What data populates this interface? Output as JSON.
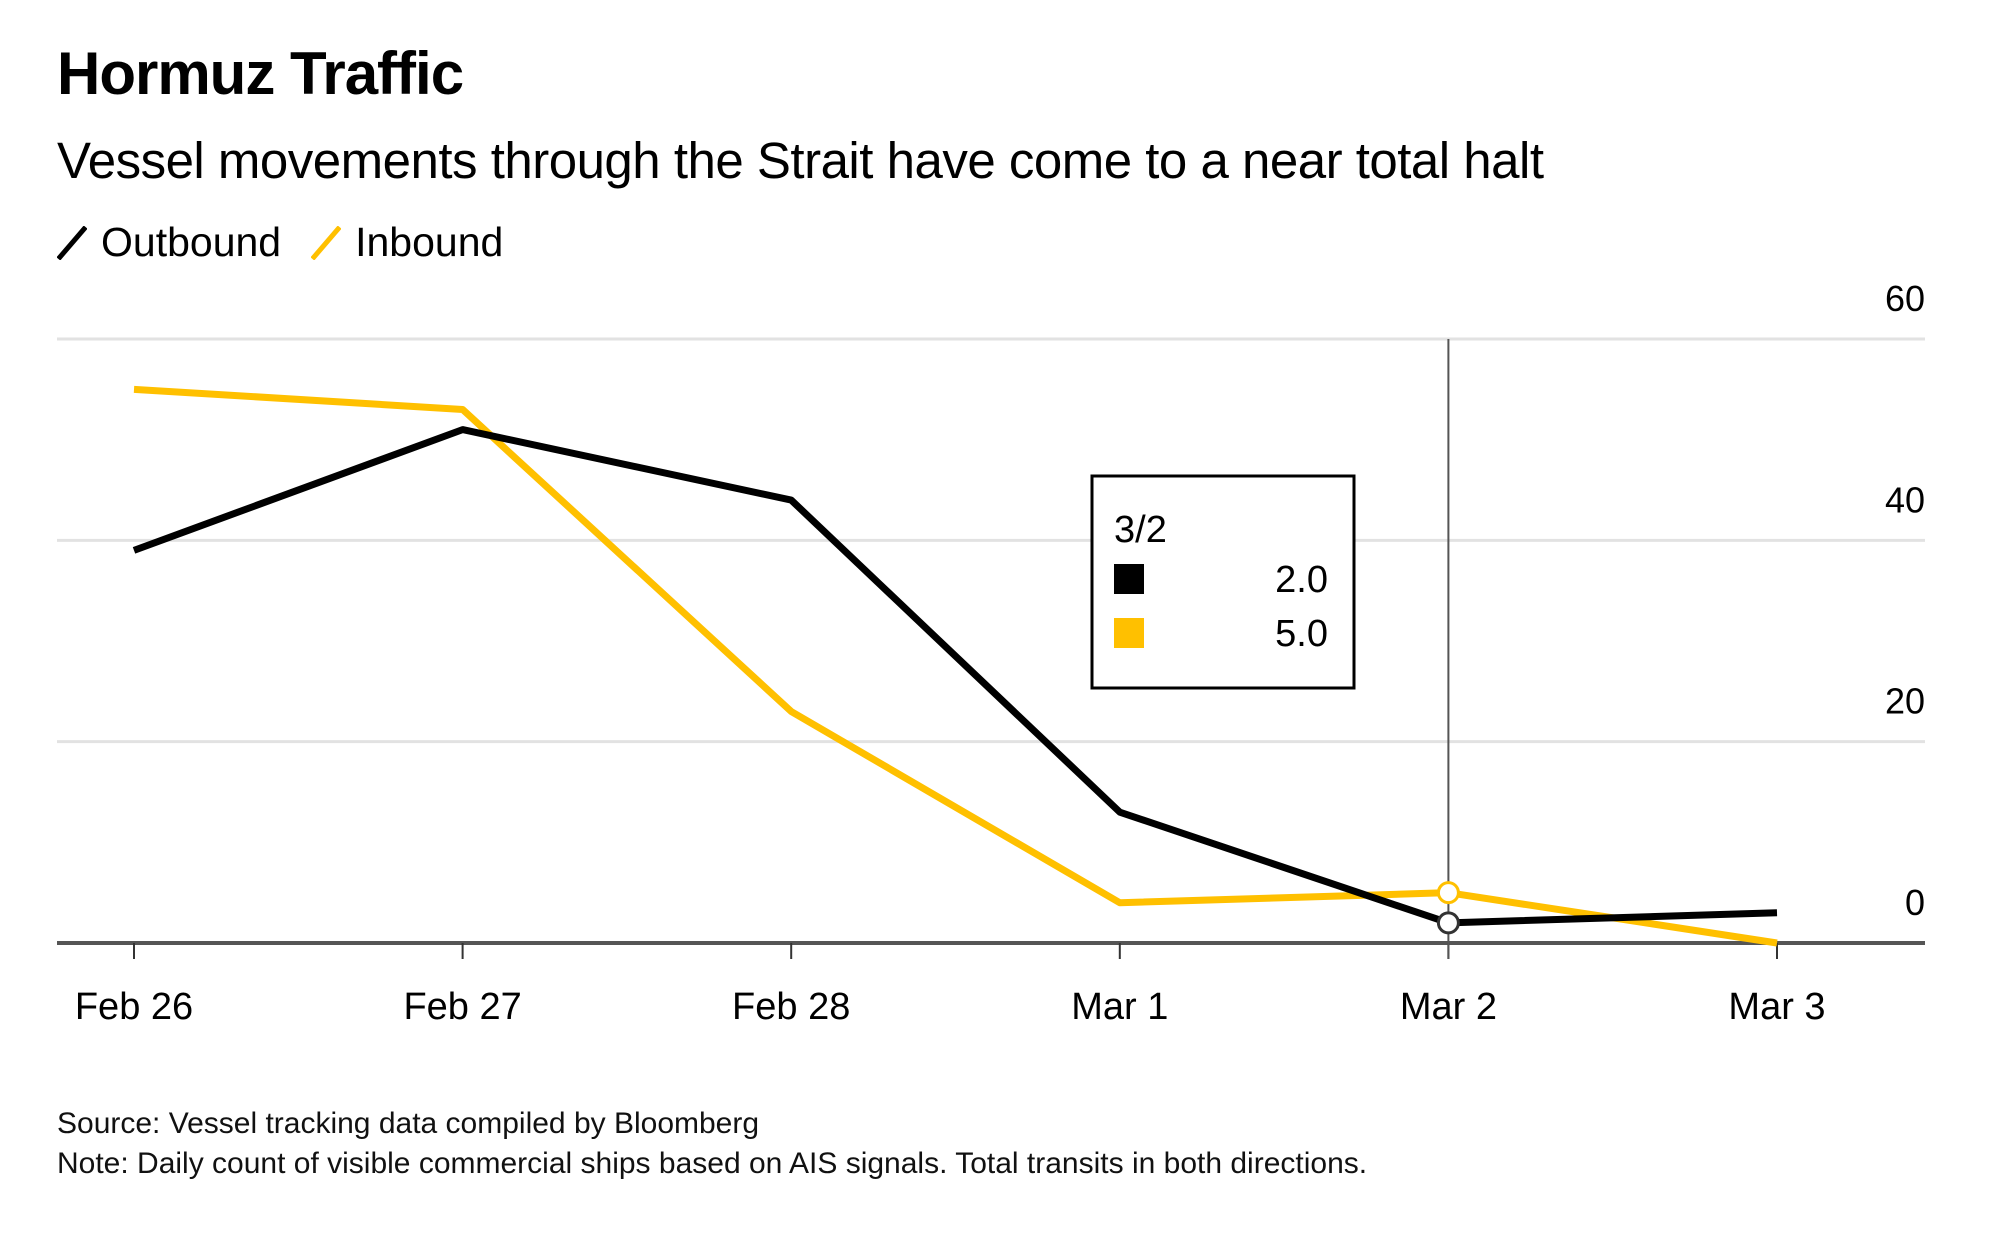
{
  "header": {
    "title": "Hormuz Traffic",
    "subtitle": "Vessel movements through the Strait have come to a near total halt"
  },
  "legend": [
    {
      "label": "Outbound",
      "color": "#000000"
    },
    {
      "label": "Inbound",
      "color": "#FFC000"
    }
  ],
  "tooltip": {
    "date": "3/2",
    "rows": [
      {
        "series": "Outbound",
        "color": "#000000",
        "value": "2.0"
      },
      {
        "series": "Inbound",
        "color": "#FFC000",
        "value": "5.0"
      }
    ],
    "highlight_index": 4
  },
  "footer": {
    "source": "Source: Vessel tracking data compiled by Bloomberg",
    "note": "Note: Daily count of visible commercial ships based on AIS signals. Total transits in both directions."
  },
  "chart_data": {
    "type": "line",
    "title": "Hormuz Traffic",
    "subtitle": "Vessel movements through the Strait have come to a near total halt",
    "categories": [
      "Feb 26",
      "Feb 27",
      "Feb 28",
      "Mar 1",
      "Mar 2",
      "Mar 3"
    ],
    "series": [
      {
        "name": "Outbound",
        "color": "#000000",
        "values": [
          39,
          51,
          44,
          13,
          2,
          3
        ]
      },
      {
        "name": "Inbound",
        "color": "#FFC000",
        "values": [
          55,
          53,
          23,
          4,
          5,
          0
        ]
      }
    ],
    "xlabel": "",
    "ylabel": "",
    "ylim": [
      0,
      60
    ],
    "yticks": [
      0,
      20,
      40,
      60
    ],
    "y_axis_side": "right",
    "grid": true,
    "legend_position": "top-left"
  }
}
